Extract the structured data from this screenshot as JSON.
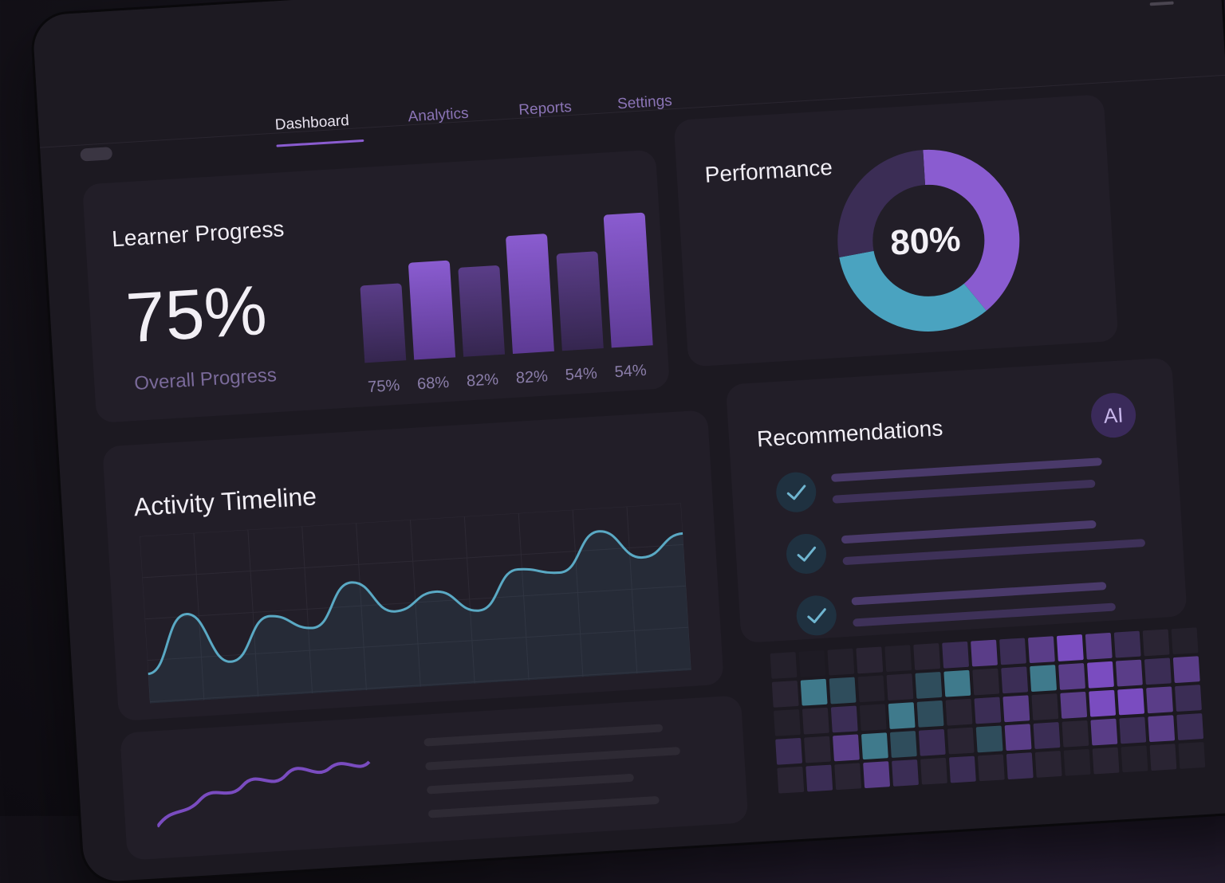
{
  "nav": {
    "tabs": [
      {
        "label": "Dashboard",
        "active": true
      },
      {
        "label": "Analytics",
        "active": false
      },
      {
        "label": "Reports",
        "active": false
      },
      {
        "label": "Settings",
        "active": false
      }
    ]
  },
  "learner_progress": {
    "title": "Learner Progress",
    "overall_value": "75%",
    "overall_label": "Overall Progress",
    "chart_data": {
      "type": "bar",
      "categories": [
        "75%",
        "68%",
        "82%",
        "82%",
        "54%",
        "54%"
      ],
      "values": [
        54,
        68,
        62,
        82,
        68,
        93
      ],
      "ylim": [
        0,
        100
      ]
    }
  },
  "performance": {
    "title": "Performance",
    "center_label": "80%",
    "chart_data": {
      "type": "pie",
      "segments": [
        {
          "value": 40,
          "color": "#8a5cd0"
        },
        {
          "value": 33,
          "color": "#4aa3c0"
        },
        {
          "value": 27,
          "color": "#3b2d55"
        }
      ]
    }
  },
  "activity": {
    "title": "Activity Timeline",
    "chart_data": {
      "type": "line",
      "values": [
        15,
        55,
        20,
        50,
        40,
        70,
        48,
        60,
        45,
        72,
        68,
        95,
        75,
        90
      ]
    }
  },
  "recommendations": {
    "title": "Recommendations",
    "badge": "AI",
    "items": [
      {
        "checked": true
      },
      {
        "checked": true
      },
      {
        "checked": true
      }
    ]
  },
  "colors": {
    "accent_purple": "#8a5cd0",
    "accent_teal": "#4aa3c0",
    "card_bg": "#221e28"
  }
}
